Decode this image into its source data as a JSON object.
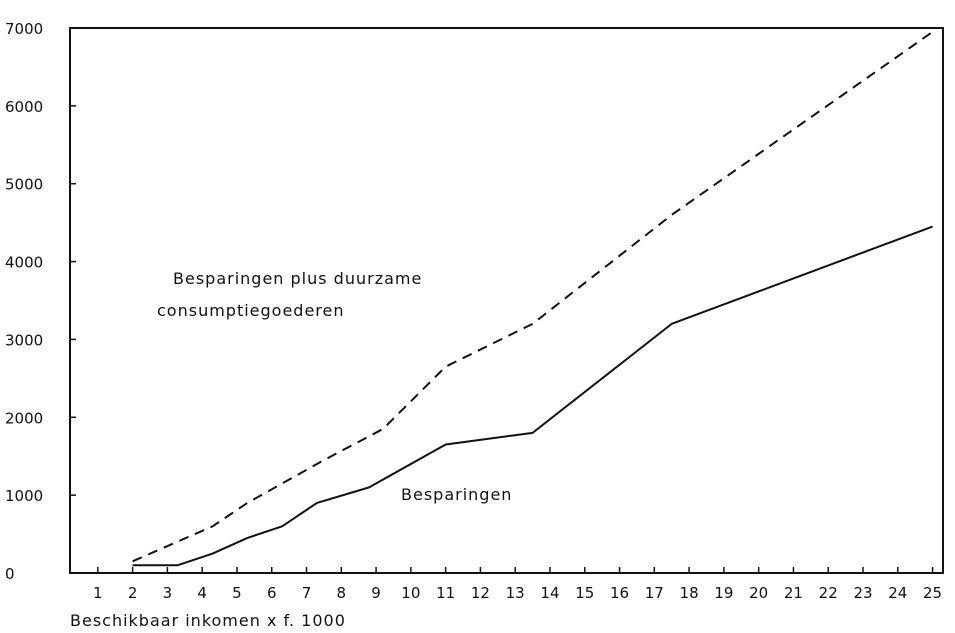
{
  "chart_data": {
    "type": "line",
    "title": "",
    "xlabel": "Beschikbaar inkomen x f. 1000",
    "ylabel": "",
    "xlim": [
      0.2,
      25.3
    ],
    "ylim": [
      0,
      7000
    ],
    "grid": false,
    "x_ticks": [
      "1",
      "2",
      "3",
      "4",
      "5",
      "6",
      "7",
      "8",
      "9",
      "10",
      "11",
      "12",
      "13",
      "14",
      "15",
      "16",
      "17",
      "18",
      "19",
      "20",
      "21",
      "22",
      "23",
      "24",
      "25"
    ],
    "y_ticks": [
      "0",
      "1000",
      "2000",
      "3000",
      "4000",
      "5000",
      "6000",
      "7000"
    ],
    "series": [
      {
        "name": "Besparingen plus duurzame consumptiegoederen",
        "style": "dashed",
        "x": [
          2,
          4.3,
          5.3,
          7.5,
          9.2,
          11,
          13.5,
          17.5,
          25
        ],
        "y": [
          150,
          600,
          900,
          1450,
          1850,
          2650,
          3200,
          4600,
          6950
        ]
      },
      {
        "name": "Besparingen",
        "style": "solid",
        "x": [
          2,
          3.3,
          4.3,
          5.3,
          6.3,
          7.3,
          8.8,
          11,
          13.5,
          17.5,
          25
        ],
        "y": [
          100,
          100,
          250,
          450,
          600,
          900,
          1100,
          1650,
          1800,
          3200,
          4450
        ]
      }
    ],
    "annotations": {
      "dashed_label_line1": "Besparingen plus duurzame",
      "dashed_label_line2": "consumptiegoederen",
      "solid_label": "Besparingen"
    },
    "colors": {
      "line": "#111111",
      "axis": "#111111",
      "background": "#ffffff"
    }
  }
}
